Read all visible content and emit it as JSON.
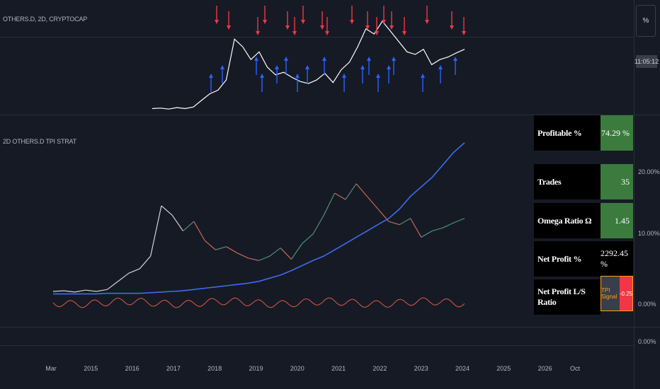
{
  "header": {
    "symbol": "OTHERS.D, 2D, CRYPTOCAP",
    "strategy": "2D OTHERS.D TPI STRAT"
  },
  "toolbar": {
    "percent_label": "%",
    "time_label": "11:05:12"
  },
  "stats": {
    "rows": [
      {
        "label": "Profitable %",
        "value": "74.29 %"
      },
      {
        "label": "Trades",
        "value": "35"
      },
      {
        "label": "Omega Ratio Ω",
        "value": "1.45"
      },
      {
        "label": "Net Profit %",
        "value": "2292.45 %"
      },
      {
        "label": "Net Profit L/S Ratio",
        "value": ""
      }
    ],
    "tpi_label": "TPI Signal",
    "tpi_value": "-0.25"
  },
  "colors": {
    "bg": "#161a25",
    "long": "#2962ff",
    "short": "#f23645",
    "equity": "#3d6cf0",
    "profit_cell": "#3b7b3e",
    "tpi_border": "#f7a21b"
  },
  "chart_data": {
    "type": "line",
    "x_ticks": [
      "Mar",
      "2015",
      "2016",
      "2017",
      "2018",
      "2019",
      "2020",
      "2021",
      "2022",
      "2023",
      "2024",
      "2025",
      "2026",
      "Oct"
    ],
    "y_ticks": [
      "20.00%",
      "10.00%",
      "0.00%"
    ],
    "y_extra_tick": "0.00%",
    "series": [
      {
        "values": [
          0.9,
          1.0,
          0.8,
          1.1,
          0.9,
          1.2,
          2.5,
          3.8,
          4.5,
          6.5,
          14.5,
          13.0,
          10.5,
          12.0,
          9.0,
          7.5,
          8.0,
          7.0,
          6.2,
          5.8,
          6.5,
          7.8,
          6.0,
          8.5,
          10.0,
          13.0,
          16.5,
          15.5,
          18.0,
          16.0,
          14.0,
          12.0,
          11.5,
          12.5,
          9.5,
          10.5,
          11.0,
          11.8,
          12.5
        ]
      },
      {
        "values": [
          0.5,
          0.5,
          0.5,
          0.5,
          0.5,
          0.6,
          0.6,
          0.6,
          0.6,
          0.7,
          0.8,
          0.9,
          1.0,
          1.2,
          1.4,
          1.6,
          1.8,
          2.0,
          2.2,
          2.5,
          3.0,
          3.5,
          4.2,
          5.0,
          5.8,
          6.5,
          7.5,
          8.5,
          9.5,
          10.5,
          11.5,
          12.5,
          14.0,
          16.0,
          17.5,
          19.0,
          21.0,
          23.0,
          24.5
        ]
      }
    ]
  }
}
